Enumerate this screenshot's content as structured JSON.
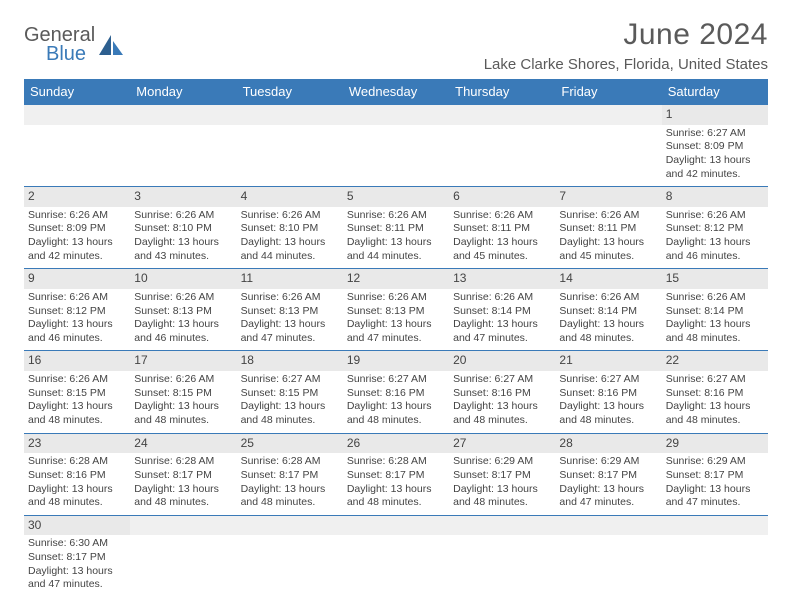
{
  "brand": {
    "part1": "General",
    "part2": "Blue"
  },
  "title": "June 2024",
  "location": "Lake Clarke Shores, Florida, United States",
  "colors": {
    "header_bg": "#3a7ab8",
    "header_text": "#ffffff",
    "daynum_bg": "#e9e9e9",
    "row_divider": "#3a7ab8",
    "text": "#444444",
    "title_text": "#5a5a5a"
  },
  "fonts": {
    "title_size": 30,
    "location_size": 15,
    "th_size": 13,
    "cell_size": 10.5
  },
  "dayHeaders": [
    "Sunday",
    "Monday",
    "Tuesday",
    "Wednesday",
    "Thursday",
    "Friday",
    "Saturday"
  ],
  "weeks": [
    [
      null,
      null,
      null,
      null,
      null,
      null,
      {
        "n": "1",
        "sr": "Sunrise: 6:27 AM",
        "ss": "Sunset: 8:09 PM",
        "dl1": "Daylight: 13 hours",
        "dl2": "and 42 minutes."
      }
    ],
    [
      {
        "n": "2",
        "sr": "Sunrise: 6:26 AM",
        "ss": "Sunset: 8:09 PM",
        "dl1": "Daylight: 13 hours",
        "dl2": "and 42 minutes."
      },
      {
        "n": "3",
        "sr": "Sunrise: 6:26 AM",
        "ss": "Sunset: 8:10 PM",
        "dl1": "Daylight: 13 hours",
        "dl2": "and 43 minutes."
      },
      {
        "n": "4",
        "sr": "Sunrise: 6:26 AM",
        "ss": "Sunset: 8:10 PM",
        "dl1": "Daylight: 13 hours",
        "dl2": "and 44 minutes."
      },
      {
        "n": "5",
        "sr": "Sunrise: 6:26 AM",
        "ss": "Sunset: 8:11 PM",
        "dl1": "Daylight: 13 hours",
        "dl2": "and 44 minutes."
      },
      {
        "n": "6",
        "sr": "Sunrise: 6:26 AM",
        "ss": "Sunset: 8:11 PM",
        "dl1": "Daylight: 13 hours",
        "dl2": "and 45 minutes."
      },
      {
        "n": "7",
        "sr": "Sunrise: 6:26 AM",
        "ss": "Sunset: 8:11 PM",
        "dl1": "Daylight: 13 hours",
        "dl2": "and 45 minutes."
      },
      {
        "n": "8",
        "sr": "Sunrise: 6:26 AM",
        "ss": "Sunset: 8:12 PM",
        "dl1": "Daylight: 13 hours",
        "dl2": "and 46 minutes."
      }
    ],
    [
      {
        "n": "9",
        "sr": "Sunrise: 6:26 AM",
        "ss": "Sunset: 8:12 PM",
        "dl1": "Daylight: 13 hours",
        "dl2": "and 46 minutes."
      },
      {
        "n": "10",
        "sr": "Sunrise: 6:26 AM",
        "ss": "Sunset: 8:13 PM",
        "dl1": "Daylight: 13 hours",
        "dl2": "and 46 minutes."
      },
      {
        "n": "11",
        "sr": "Sunrise: 6:26 AM",
        "ss": "Sunset: 8:13 PM",
        "dl1": "Daylight: 13 hours",
        "dl2": "and 47 minutes."
      },
      {
        "n": "12",
        "sr": "Sunrise: 6:26 AM",
        "ss": "Sunset: 8:13 PM",
        "dl1": "Daylight: 13 hours",
        "dl2": "and 47 minutes."
      },
      {
        "n": "13",
        "sr": "Sunrise: 6:26 AM",
        "ss": "Sunset: 8:14 PM",
        "dl1": "Daylight: 13 hours",
        "dl2": "and 47 minutes."
      },
      {
        "n": "14",
        "sr": "Sunrise: 6:26 AM",
        "ss": "Sunset: 8:14 PM",
        "dl1": "Daylight: 13 hours",
        "dl2": "and 48 minutes."
      },
      {
        "n": "15",
        "sr": "Sunrise: 6:26 AM",
        "ss": "Sunset: 8:14 PM",
        "dl1": "Daylight: 13 hours",
        "dl2": "and 48 minutes."
      }
    ],
    [
      {
        "n": "16",
        "sr": "Sunrise: 6:26 AM",
        "ss": "Sunset: 8:15 PM",
        "dl1": "Daylight: 13 hours",
        "dl2": "and 48 minutes."
      },
      {
        "n": "17",
        "sr": "Sunrise: 6:26 AM",
        "ss": "Sunset: 8:15 PM",
        "dl1": "Daylight: 13 hours",
        "dl2": "and 48 minutes."
      },
      {
        "n": "18",
        "sr": "Sunrise: 6:27 AM",
        "ss": "Sunset: 8:15 PM",
        "dl1": "Daylight: 13 hours",
        "dl2": "and 48 minutes."
      },
      {
        "n": "19",
        "sr": "Sunrise: 6:27 AM",
        "ss": "Sunset: 8:16 PM",
        "dl1": "Daylight: 13 hours",
        "dl2": "and 48 minutes."
      },
      {
        "n": "20",
        "sr": "Sunrise: 6:27 AM",
        "ss": "Sunset: 8:16 PM",
        "dl1": "Daylight: 13 hours",
        "dl2": "and 48 minutes."
      },
      {
        "n": "21",
        "sr": "Sunrise: 6:27 AM",
        "ss": "Sunset: 8:16 PM",
        "dl1": "Daylight: 13 hours",
        "dl2": "and 48 minutes."
      },
      {
        "n": "22",
        "sr": "Sunrise: 6:27 AM",
        "ss": "Sunset: 8:16 PM",
        "dl1": "Daylight: 13 hours",
        "dl2": "and 48 minutes."
      }
    ],
    [
      {
        "n": "23",
        "sr": "Sunrise: 6:28 AM",
        "ss": "Sunset: 8:16 PM",
        "dl1": "Daylight: 13 hours",
        "dl2": "and 48 minutes."
      },
      {
        "n": "24",
        "sr": "Sunrise: 6:28 AM",
        "ss": "Sunset: 8:17 PM",
        "dl1": "Daylight: 13 hours",
        "dl2": "and 48 minutes."
      },
      {
        "n": "25",
        "sr": "Sunrise: 6:28 AM",
        "ss": "Sunset: 8:17 PM",
        "dl1": "Daylight: 13 hours",
        "dl2": "and 48 minutes."
      },
      {
        "n": "26",
        "sr": "Sunrise: 6:28 AM",
        "ss": "Sunset: 8:17 PM",
        "dl1": "Daylight: 13 hours",
        "dl2": "and 48 minutes."
      },
      {
        "n": "27",
        "sr": "Sunrise: 6:29 AM",
        "ss": "Sunset: 8:17 PM",
        "dl1": "Daylight: 13 hours",
        "dl2": "and 48 minutes."
      },
      {
        "n": "28",
        "sr": "Sunrise: 6:29 AM",
        "ss": "Sunset: 8:17 PM",
        "dl1": "Daylight: 13 hours",
        "dl2": "and 47 minutes."
      },
      {
        "n": "29",
        "sr": "Sunrise: 6:29 AM",
        "ss": "Sunset: 8:17 PM",
        "dl1": "Daylight: 13 hours",
        "dl2": "and 47 minutes."
      }
    ],
    [
      {
        "n": "30",
        "sr": "Sunrise: 6:30 AM",
        "ss": "Sunset: 8:17 PM",
        "dl1": "Daylight: 13 hours",
        "dl2": "and 47 minutes."
      },
      null,
      null,
      null,
      null,
      null,
      null
    ]
  ]
}
